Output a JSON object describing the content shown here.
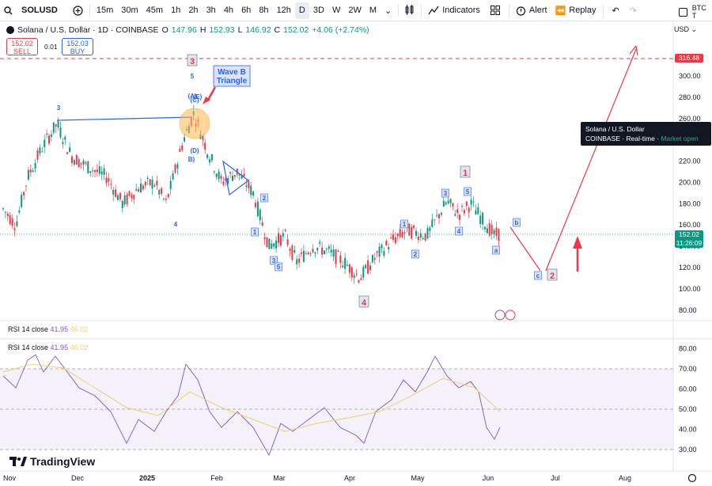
{
  "toolbar": {
    "symbol": "SOLUSD",
    "intervals": [
      "15m",
      "30m",
      "45m",
      "1h",
      "2h",
      "3h",
      "4h",
      "6h",
      "8h",
      "12h",
      "D",
      "3D",
      "W",
      "2W",
      "M"
    ],
    "active_interval": "D",
    "indicators_label": "Indicators",
    "alert_label": "Alert",
    "replay_label": "Replay",
    "right_label": "BTC T"
  },
  "legend": {
    "title": "Solana / U.S. Dollar · 1D · COINBASE",
    "o": "147.96",
    "h": "152.93",
    "l": "146.92",
    "c": "152.02",
    "change": "+4.06 (+2.74%)",
    "sell_price": "152.02",
    "sell_label": "SELL",
    "spread": "0.01",
    "buy_price": "152.03",
    "buy_label": "BUY"
  },
  "price_axis": {
    "currency": "USD",
    "ticks": [
      "300.00",
      "280.00",
      "260.00",
      "240.00",
      "220.00",
      "200.00",
      "180.00",
      "160.00",
      "140.00",
      "120.00",
      "100.00",
      "80.00"
    ],
    "target_tag": "316.48",
    "current_tag": "152.02",
    "countdown": "11:26:09"
  },
  "time_axis": [
    "Nov",
    "Dec",
    "2025",
    "Feb",
    "Mar",
    "Apr",
    "May",
    "Jun",
    "Jul",
    "Aug"
  ],
  "tooltip": {
    "line1": "Solana / U.S. Dollar",
    "exchange": "COINBASE",
    "realtime": "Real-time",
    "market": "Market open"
  },
  "annotations": {
    "wave_b": "Wave B",
    "triangle": "Triangle",
    "labels": [
      "3",
      "5",
      "(A)",
      "(C)",
      "(E)",
      "(D)",
      "B)",
      "3",
      "4",
      "2",
      "1",
      "3",
      "5",
      "4",
      "1",
      "2",
      "3",
      "5",
      "1",
      "4",
      "a",
      "b",
      "c",
      "2"
    ]
  },
  "rsi": {
    "label1": "RSI 14 close",
    "v1a": "41.95",
    "v1b": "46.02",
    "label2": "RSI 14 close",
    "v2a": "41.95",
    "v2b": "46.02",
    "ticks": [
      "80.00",
      "70.00",
      "60.00",
      "50.00",
      "40.00",
      "30.00"
    ]
  },
  "brand": "TradingView",
  "colors": {
    "up": "#089981",
    "down": "#f23645",
    "rsi": "#7e57c2",
    "rsi_ma": "#e6d46a",
    "blue": "#2962ff"
  }
}
